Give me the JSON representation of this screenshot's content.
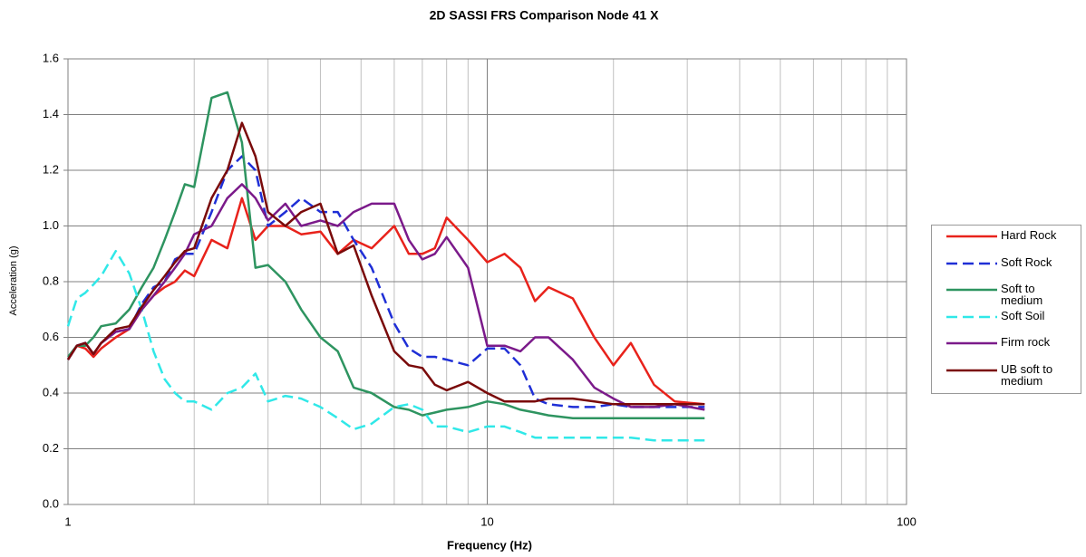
{
  "chart_data": {
    "type": "line",
    "title": "2D SASSI FRS Comparison Node 41 X",
    "xlabel": "Frequency (Hz)",
    "ylabel": "Acceleration (g)",
    "xscale": "log",
    "grid": true,
    "legend": "right",
    "xlim": [
      1,
      100
    ],
    "xticks": [
      1,
      10,
      100
    ],
    "xminorticks": [
      2,
      3,
      4,
      5,
      6,
      7,
      8,
      9,
      20,
      30,
      40,
      50,
      60,
      70,
      80,
      90
    ],
    "ylim": [
      0,
      1.6
    ],
    "yticks": [
      {
        "value": 0,
        "label": "0.0"
      },
      0.2,
      0.4,
      0.6,
      0.8,
      {
        "value": 1,
        "label": "1.0"
      },
      1.2,
      1.4,
      1.6
    ],
    "x": [
      1,
      1.05,
      1.1,
      1.15,
      1.2,
      1.3,
      1.4,
      1.5,
      1.6,
      1.7,
      1.8,
      1.9,
      2,
      2.2,
      2.4,
      2.6,
      2.8,
      3,
      3.3,
      3.6,
      4,
      4.4,
      4.8,
      5.3,
      6,
      6.5,
      7,
      7.5,
      8,
      9,
      10,
      11,
      12,
      13,
      14,
      16,
      18,
      20,
      22,
      25,
      28,
      33
    ],
    "series": [
      {
        "name": "Hard Rock",
        "color": "#e8221b",
        "dash": false,
        "values": [
          0.52,
          0.57,
          0.56,
          0.53,
          0.56,
          0.6,
          0.63,
          0.7,
          0.75,
          0.78,
          0.8,
          0.84,
          0.82,
          0.95,
          0.92,
          1.1,
          0.95,
          1.0,
          1.0,
          0.97,
          0.98,
          0.9,
          0.95,
          0.92,
          1.0,
          0.9,
          0.9,
          0.92,
          1.03,
          0.95,
          0.87,
          0.9,
          0.85,
          0.73,
          0.78,
          0.74,
          0.6,
          0.5,
          0.58,
          0.43,
          0.37,
          0.36
        ]
      },
      {
        "name": "Soft Rock",
        "color": "#1f2fd6",
        "dash": true,
        "values": [
          0.52,
          0.57,
          0.58,
          0.54,
          0.58,
          0.62,
          0.63,
          0.72,
          0.78,
          0.8,
          0.88,
          0.9,
          0.9,
          1.05,
          1.2,
          1.25,
          1.2,
          1.0,
          1.05,
          1.1,
          1.05,
          1.05,
          0.95,
          0.85,
          0.65,
          0.56,
          0.53,
          0.53,
          0.52,
          0.5,
          0.56,
          0.56,
          0.5,
          0.38,
          0.36,
          0.35,
          0.35,
          0.36,
          0.35,
          0.35,
          0.35,
          0.35
        ]
      },
      {
        "name": "Soft to medium",
        "color": "#2e9460",
        "dash": false,
        "values": [
          0.53,
          0.57,
          0.57,
          0.6,
          0.64,
          0.65,
          0.7,
          0.78,
          0.85,
          0.95,
          1.05,
          1.15,
          1.14,
          1.46,
          1.48,
          1.3,
          0.85,
          0.86,
          0.8,
          0.7,
          0.6,
          0.55,
          0.42,
          0.4,
          0.35,
          0.34,
          0.32,
          0.33,
          0.34,
          0.35,
          0.37,
          0.36,
          0.34,
          0.33,
          0.32,
          0.31,
          0.31,
          0.31,
          0.31,
          0.31,
          0.31,
          0.31
        ]
      },
      {
        "name": "Soft Soil",
        "color": "#30e8e8",
        "dash": true,
        "values": [
          0.64,
          0.74,
          0.76,
          0.79,
          0.82,
          0.91,
          0.83,
          0.7,
          0.55,
          0.45,
          0.4,
          0.37,
          0.37,
          0.34,
          0.4,
          0.42,
          0.47,
          0.37,
          0.39,
          0.38,
          0.35,
          0.31,
          0.27,
          0.29,
          0.35,
          0.36,
          0.34,
          0.28,
          0.28,
          0.26,
          0.28,
          0.28,
          0.26,
          0.24,
          0.24,
          0.24,
          0.24,
          0.24,
          0.24,
          0.23,
          0.23,
          0.23
        ]
      },
      {
        "name": "Firm rock",
        "color": "#7b1a8a",
        "dash": false,
        "values": [
          0.52,
          0.57,
          0.58,
          0.54,
          0.58,
          0.62,
          0.63,
          0.7,
          0.75,
          0.8,
          0.85,
          0.9,
          0.97,
          1.0,
          1.1,
          1.15,
          1.1,
          1.02,
          1.08,
          1.0,
          1.02,
          1.0,
          1.05,
          1.08,
          1.08,
          0.95,
          0.88,
          0.9,
          0.96,
          0.85,
          0.57,
          0.57,
          0.55,
          0.6,
          0.6,
          0.52,
          0.42,
          0.38,
          0.35,
          0.35,
          0.36,
          0.34
        ]
      },
      {
        "name": "UB soft to medium",
        "color": "#7a0a0a",
        "dash": false,
        "values": [
          0.52,
          0.57,
          0.58,
          0.54,
          0.58,
          0.63,
          0.64,
          0.71,
          0.77,
          0.82,
          0.87,
          0.91,
          0.92,
          1.1,
          1.2,
          1.37,
          1.25,
          1.05,
          1.0,
          1.05,
          1.08,
          0.9,
          0.93,
          0.75,
          0.55,
          0.5,
          0.49,
          0.43,
          0.41,
          0.44,
          0.4,
          0.37,
          0.37,
          0.37,
          0.38,
          0.38,
          0.37,
          0.36,
          0.36,
          0.36,
          0.36,
          0.36
        ]
      }
    ]
  }
}
